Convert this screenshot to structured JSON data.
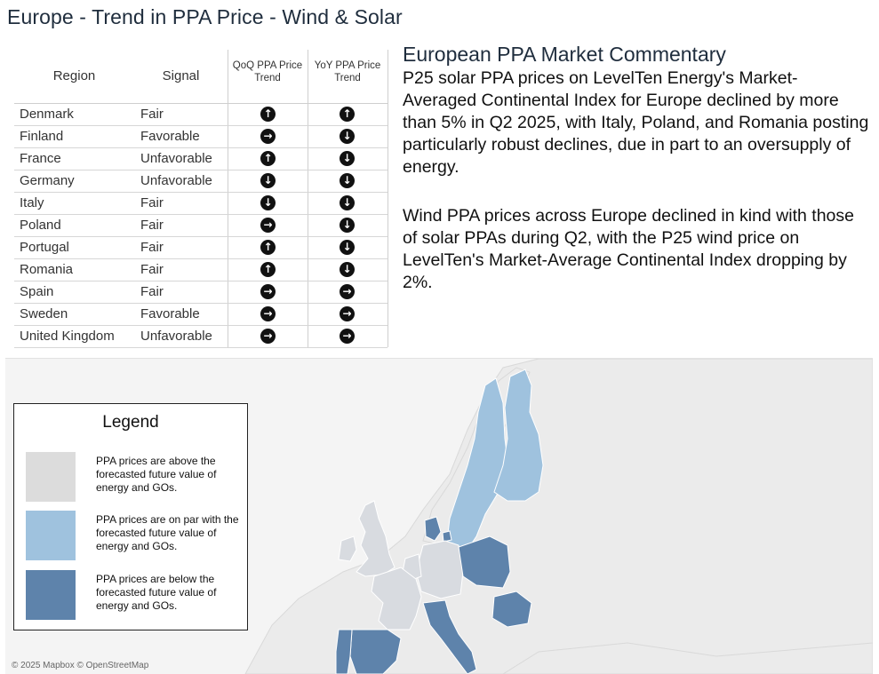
{
  "page": {
    "title": "Europe - Trend in PPA Price - Wind & Solar"
  },
  "colors": {
    "above": "#dcdcdc",
    "on_par": "#9fc2de",
    "below": "#5e83ab",
    "map_bg": "#f4f4f4",
    "land": "#ebebeb",
    "arrow": "#111111"
  },
  "table": {
    "headers": {
      "region": "Region",
      "signal": "Signal",
      "qoq": "QoQ PPA Price Trend",
      "yoy": "YoY PPA Price Trend"
    },
    "rows": [
      {
        "region": "Denmark",
        "signal": "Fair",
        "qoq": "up",
        "yoy": "up"
      },
      {
        "region": "Finland",
        "signal": "Favorable",
        "qoq": "right",
        "yoy": "down"
      },
      {
        "region": "France",
        "signal": "Unfavorable",
        "qoq": "up",
        "yoy": "down"
      },
      {
        "region": "Germany",
        "signal": "Unfavorable",
        "qoq": "down",
        "yoy": "down"
      },
      {
        "region": "Italy",
        "signal": "Fair",
        "qoq": "down",
        "yoy": "down"
      },
      {
        "region": "Poland",
        "signal": "Fair",
        "qoq": "right",
        "yoy": "down"
      },
      {
        "region": "Portugal",
        "signal": "Fair",
        "qoq": "up",
        "yoy": "down"
      },
      {
        "region": "Romania",
        "signal": "Fair",
        "qoq": "up",
        "yoy": "down"
      },
      {
        "region": "Spain",
        "signal": "Fair",
        "qoq": "right",
        "yoy": "right"
      },
      {
        "region": "Sweden",
        "signal": "Favorable",
        "qoq": "right",
        "yoy": "right"
      },
      {
        "region": "United Kingdom",
        "signal": "Unfavorable",
        "qoq": "right",
        "yoy": "right"
      }
    ]
  },
  "commentary": {
    "title": "European PPA Market Commentary",
    "paragraphs": [
      "P25 solar PPA prices on LevelTen Energy's Market-Averaged Continental Index for Europe declined by more than 5% in Q2 2025, with Italy, Poland, and Romania posting particularly robust declines, due in part to an oversupply of energy.",
      "Wind PPA prices across Europe declined in kind with those of solar PPAs during Q2, with the P25 wind price on LevelTen's Market-Average Continental Index dropping by 2%."
    ]
  },
  "legend": {
    "title": "Legend",
    "items": [
      {
        "text": "PPA prices are above the forecasted future value of energy and GOs."
      },
      {
        "text": "PPA prices are on par with the forecasted future value of energy and GOs."
      },
      {
        "text": "PPA prices are below the forecasted future value of energy and GOs."
      }
    ]
  },
  "map": {
    "attribution": "© 2025 Mapbox © OpenStreetMap"
  }
}
